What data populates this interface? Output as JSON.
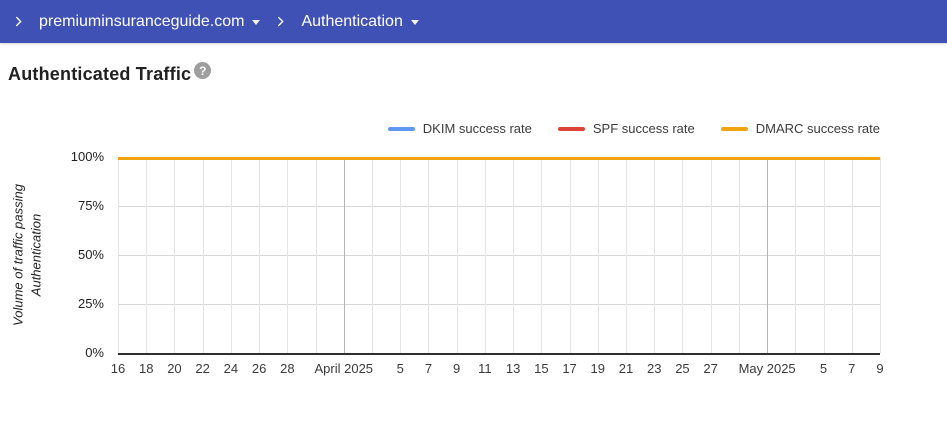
{
  "colors": {
    "header_bg": "#3F51B5",
    "header_text": "#FFFFFF",
    "axis": "#2F2F2F",
    "gridline": "#E4E4E4",
    "gridline_month": "#B5B5B5",
    "help_icon_bg": "#9E9E9E"
  },
  "icons": {
    "help": "?"
  },
  "header": {
    "breadcrumb": [
      {
        "label": "premiuminsuranceguide.com",
        "dropdown": true
      },
      {
        "label": "Authentication",
        "dropdown": true
      }
    ]
  },
  "page": {
    "title": "Authenticated Traffic"
  },
  "chart_data": {
    "type": "line",
    "title": "Authenticated Traffic",
    "ylabel": "Volume of traffic passing Authentication",
    "ylabel_lines": [
      "Volume of traffic passing",
      "Authentication"
    ],
    "ylim": [
      0,
      100
    ],
    "y_ticks": [
      "100%",
      "75%",
      "50%",
      "25%",
      "0%"
    ],
    "grid": true,
    "legend_position": "top-right",
    "x_tick_labels": [
      "16",
      "18",
      "20",
      "22",
      "24",
      "26",
      "28",
      "",
      "April 2025",
      "",
      "5",
      "7",
      "9",
      "11",
      "13",
      "15",
      "17",
      "19",
      "21",
      "23",
      "25",
      "27",
      "",
      "May 2025",
      "",
      "5",
      "7",
      "9"
    ],
    "month_gridline_indices": [
      8,
      23
    ],
    "series": [
      {
        "name": "DKIM success rate",
        "color": "#5E97F6",
        "values": [
          100,
          100,
          100,
          100,
          100,
          100,
          100,
          100,
          100,
          100,
          100,
          100,
          100,
          100,
          100,
          100,
          100,
          100,
          100,
          100,
          100,
          100,
          100,
          100,
          100,
          100,
          100,
          100
        ]
      },
      {
        "name": "SPF success rate",
        "color": "#DB4437",
        "values": [
          100,
          100,
          100,
          100,
          100,
          100,
          100,
          100,
          100,
          100,
          100,
          100,
          100,
          100,
          100,
          100,
          100,
          100,
          100,
          100,
          100,
          100,
          100,
          100,
          100,
          100,
          100,
          100
        ]
      },
      {
        "name": "DMARC success rate",
        "color": "#F0A30C",
        "values": [
          100,
          100,
          100,
          100,
          100,
          100,
          100,
          100,
          100,
          100,
          100,
          100,
          100,
          100,
          100,
          100,
          100,
          100,
          100,
          100,
          100,
          100,
          100,
          100,
          100,
          100,
          100,
          100
        ]
      }
    ]
  }
}
